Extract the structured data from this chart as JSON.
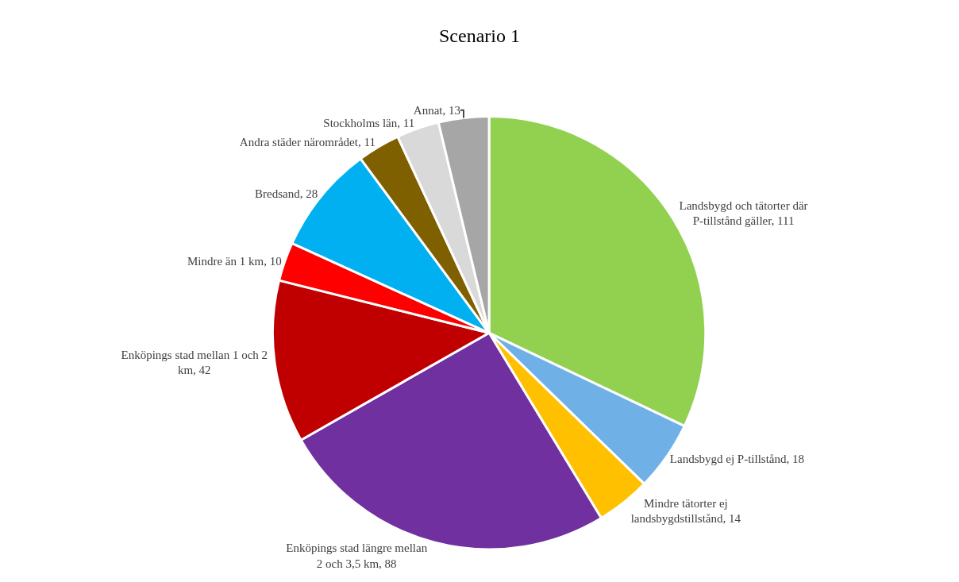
{
  "chart_data": {
    "type": "pie",
    "title": "Scenario 1",
    "categories": [
      "Landsbygd och tätorter där P-tillstånd gäller",
      "Landsbygd ej P-tillstånd",
      "Mindre tätorter ej landsbygdstillstånd",
      "Enköpings stad längre mellan 2 och 3,5 km",
      "Enköpings stad mellan 1 och 2 km",
      "Mindre än 1 km",
      "Bredsand",
      "Andra städer närområdet",
      "Stockholms län",
      "Annat"
    ],
    "values": [
      111,
      18,
      14,
      88,
      42,
      10,
      28,
      11,
      11,
      13
    ],
    "colors": [
      "#92d050",
      "#6fb1e6",
      "#ffc000",
      "#7030a0",
      "#c00000",
      "#ff0000",
      "#00b0f0",
      "#7f6000",
      "#d9d9d9",
      "#a6a6a6"
    ],
    "value_labels": [
      ", 111",
      ", 18",
      ", 14",
      ", 88",
      ", 42",
      ", 10",
      ", 28",
      ", 11",
      ", 11",
      ", 13"
    ],
    "legend": false
  }
}
